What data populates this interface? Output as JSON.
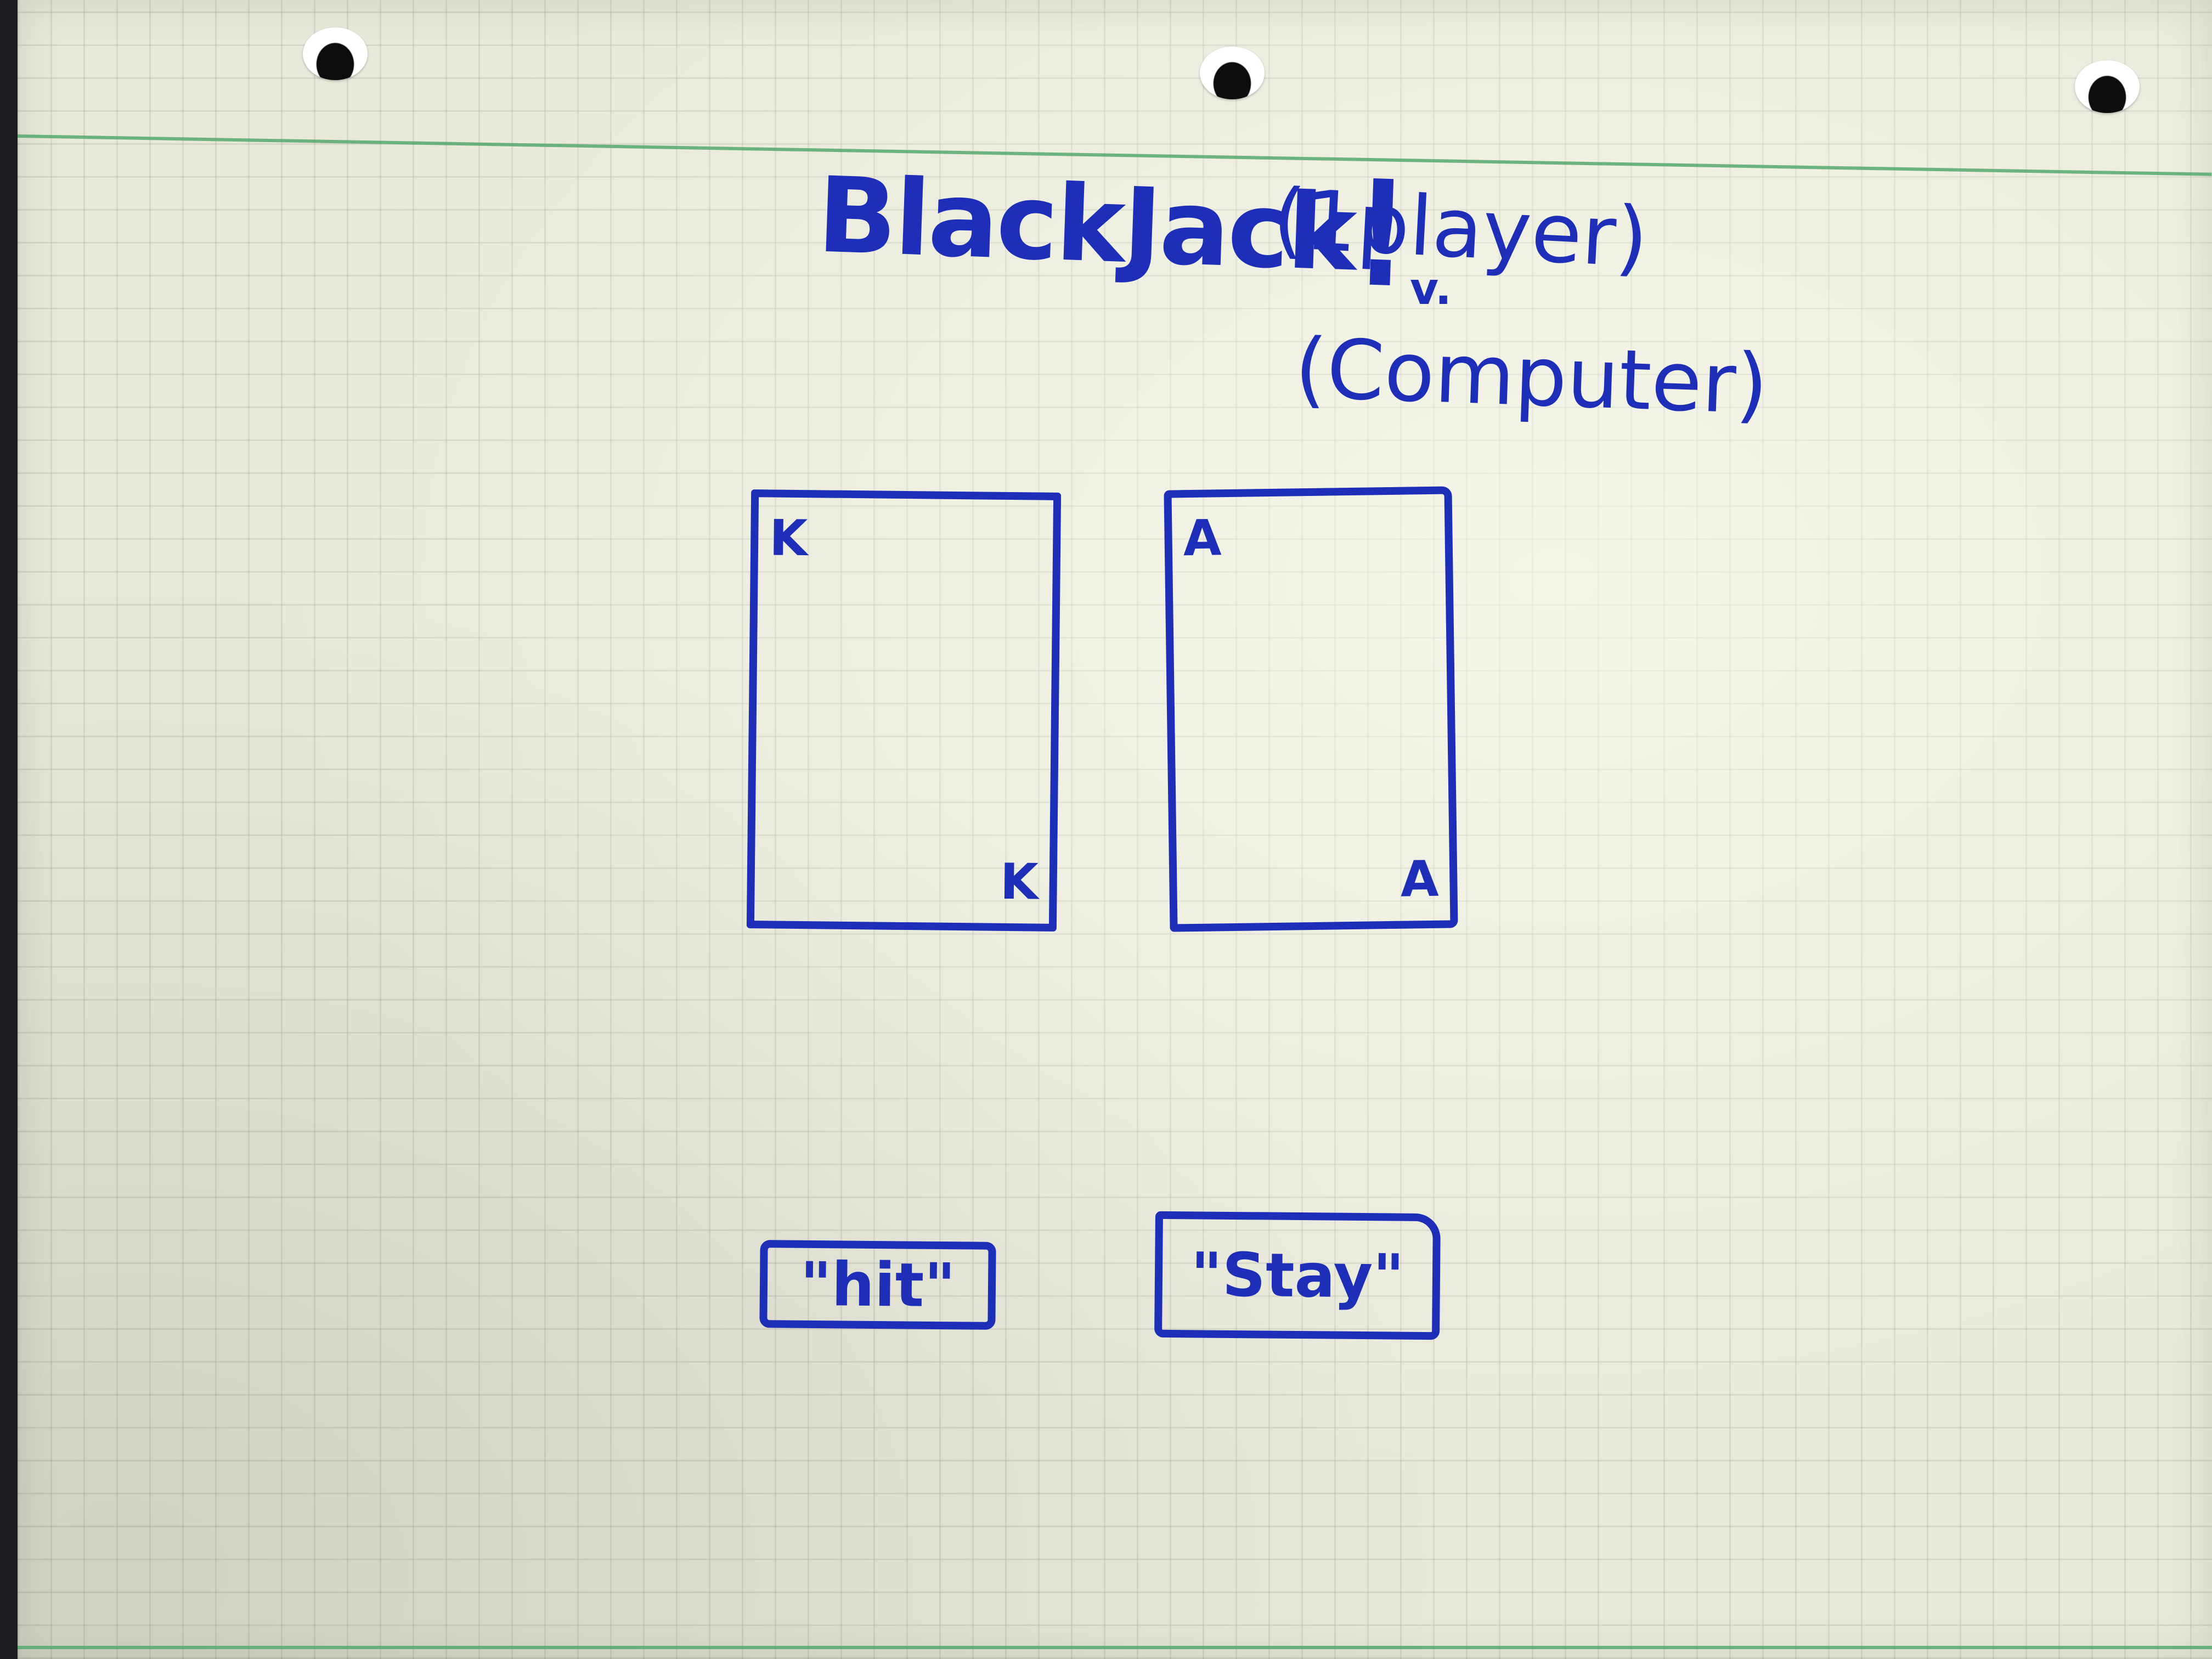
{
  "title": {
    "text": "BlackJack",
    "exclaim": "!"
  },
  "player_label": "(1player)",
  "versus": "v.",
  "computer_label": "(Computer)",
  "cards": [
    {
      "rank": "K"
    },
    {
      "rank": "A"
    }
  ],
  "buttons": {
    "hit": "\"hit\"",
    "stay": "\"Stay\""
  },
  "colors": {
    "ink": "#1d2fb8",
    "paper": "#e9e9da",
    "margin_line": "#56a86f"
  }
}
